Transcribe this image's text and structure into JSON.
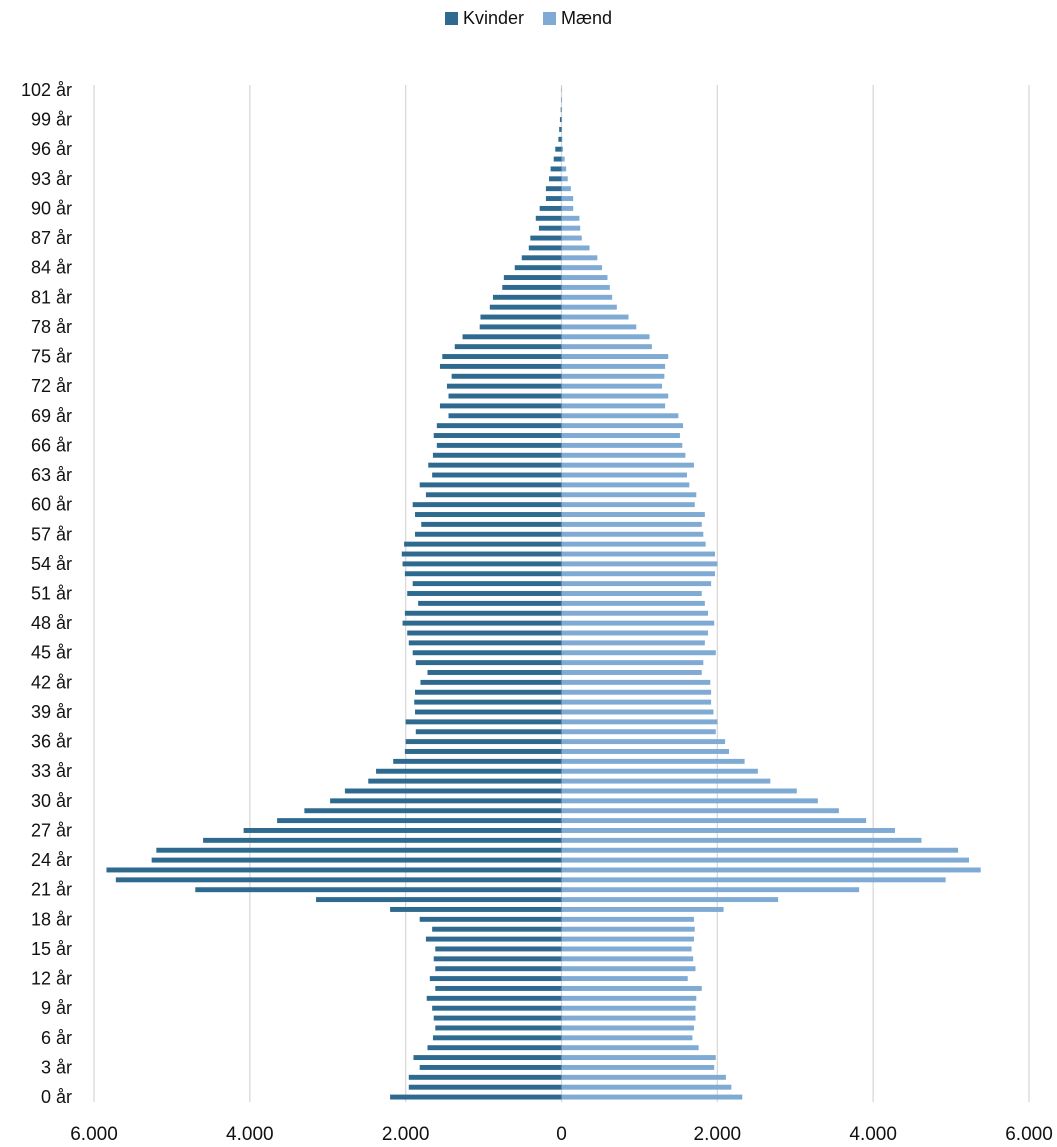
{
  "chart_data": {
    "type": "bar",
    "orientation": "horizontal",
    "variant": "population-pyramid",
    "legend": {
      "position": "top-center"
    },
    "grid": true,
    "xlim": [
      -6000,
      6000
    ],
    "x_ticks": [
      -6000,
      -4000,
      -2000,
      0,
      2000,
      4000,
      6000
    ],
    "x_tick_labels": [
      "6.000",
      "4.000",
      "2.000",
      "0",
      "2.000",
      "4.000",
      "6.000"
    ],
    "categories": [
      "0 år",
      "1 år",
      "2 år",
      "3 år",
      "4 år",
      "5 år",
      "6 år",
      "7 år",
      "8 år",
      "9 år",
      "10 år",
      "11 år",
      "12 år",
      "13 år",
      "14 år",
      "15 år",
      "16 år",
      "17 år",
      "18 år",
      "19 år",
      "20 år",
      "21 år",
      "22 år",
      "23 år",
      "24 år",
      "25 år",
      "26 år",
      "27 år",
      "28 år",
      "29 år",
      "30 år",
      "31 år",
      "32 år",
      "33 år",
      "34 år",
      "35 år",
      "36 år",
      "37 år",
      "38 år",
      "39 år",
      "40 år",
      "41 år",
      "42 år",
      "43 år",
      "44 år",
      "45 år",
      "46 år",
      "47 år",
      "48 år",
      "49 år",
      "50 år",
      "51 år",
      "52 år",
      "53 år",
      "54 år",
      "55 år",
      "56 år",
      "57 år",
      "58 år",
      "59 år",
      "60 år",
      "61 år",
      "62 år",
      "63 år",
      "64 år",
      "65 år",
      "66 år",
      "67 år",
      "68 år",
      "69 år",
      "70 år",
      "71 år",
      "72 år",
      "73 år",
      "74 år",
      "75 år",
      "76 år",
      "77 år",
      "78 år",
      "79 år",
      "80 år",
      "81 år",
      "82 år",
      "83 år",
      "84 år",
      "85 år",
      "86 år",
      "87 år",
      "88 år",
      "89 år",
      "90 år",
      "91 år",
      "92 år",
      "93 år",
      "94 år",
      "95 år",
      "96 år",
      "97 år",
      "98 år",
      "99 år",
      "100 år",
      "101 år",
      "102 år"
    ],
    "shown_tick_labels": [
      "0 år",
      "3 år",
      "6 år",
      "9 år",
      "12 år",
      "15 år",
      "18 år",
      "21 år",
      "24 år",
      "27 år",
      "30 år",
      "33 år",
      "36 år",
      "39 år",
      "42 år",
      "45 år",
      "48 år",
      "51 år",
      "54 år",
      "57 år",
      "60 år",
      "63 år",
      "66 år",
      "69 år",
      "72 år",
      "75 år",
      "78 år",
      "81 år",
      "84 år",
      "87 år",
      "90 år",
      "93 år",
      "96 år",
      "99 år",
      "102 år"
    ],
    "series": [
      {
        "name": "Kvinder",
        "color": "#2e6a8f",
        "values": [
          2200,
          1960,
          1960,
          1820,
          1900,
          1720,
          1650,
          1620,
          1640,
          1660,
          1730,
          1620,
          1690,
          1620,
          1640,
          1620,
          1740,
          1660,
          1820,
          2200,
          3150,
          4700,
          5720,
          5840,
          5260,
          5200,
          4600,
          4080,
          3650,
          3300,
          2970,
          2780,
          2480,
          2380,
          2160,
          2010,
          2000,
          1870,
          2000,
          1880,
          1890,
          1880,
          1810,
          1720,
          1870,
          1910,
          1960,
          1980,
          2040,
          2010,
          1840,
          1980,
          1910,
          2010,
          2040,
          2050,
          2020,
          1880,
          1800,
          1880,
          1910,
          1740,
          1820,
          1660,
          1710,
          1650,
          1600,
          1640,
          1600,
          1450,
          1560,
          1450,
          1470,
          1410,
          1560,
          1530,
          1370,
          1270,
          1050,
          1040,
          920,
          880,
          760,
          740,
          600,
          510,
          420,
          400,
          290,
          330,
          280,
          200,
          200,
          160,
          140,
          100,
          80,
          40,
          30,
          20,
          10,
          5,
          3
        ]
      },
      {
        "name": "Mænd",
        "color": "#7eaad4",
        "values": [
          2320,
          2180,
          2110,
          1960,
          1980,
          1760,
          1680,
          1700,
          1720,
          1720,
          1730,
          1800,
          1620,
          1720,
          1690,
          1670,
          1700,
          1710,
          1700,
          2080,
          2780,
          3820,
          4930,
          5380,
          5230,
          5090,
          4620,
          4280,
          3910,
          3560,
          3290,
          3020,
          2680,
          2520,
          2350,
          2150,
          2100,
          1980,
          2000,
          1950,
          1920,
          1920,
          1910,
          1800,
          1820,
          1980,
          1840,
          1880,
          1960,
          1880,
          1840,
          1800,
          1920,
          1970,
          2000,
          1970,
          1850,
          1820,
          1800,
          1840,
          1710,
          1730,
          1640,
          1610,
          1700,
          1590,
          1550,
          1520,
          1560,
          1500,
          1330,
          1370,
          1290,
          1320,
          1330,
          1370,
          1160,
          1130,
          960,
          860,
          710,
          650,
          620,
          590,
          520,
          460,
          360,
          260,
          240,
          230,
          150,
          150,
          120,
          80,
          60,
          40,
          20,
          10,
          5,
          3,
          2,
          1,
          0
        ]
      }
    ]
  }
}
